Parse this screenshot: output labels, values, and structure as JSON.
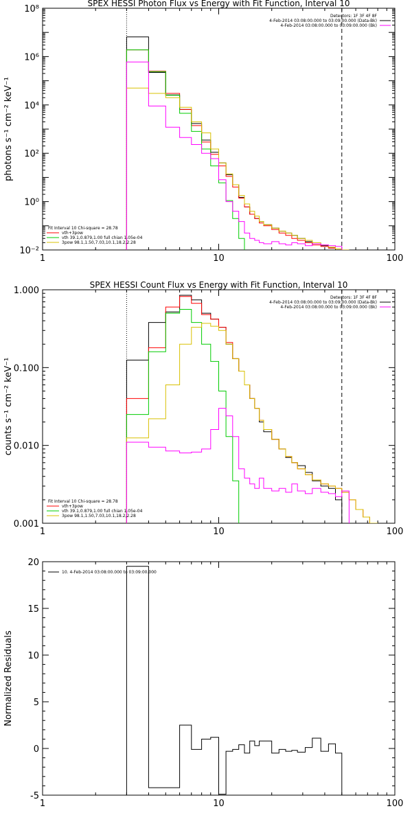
{
  "chart_data": [
    {
      "type": "line",
      "title": "SPEX HESSI Photon Flux vs Energy with Fit Function, Interval 10",
      "ylabel": "photons s⁻¹ cm⁻² keV⁻¹",
      "xlabel": "",
      "xscale": "log",
      "yscale": "log",
      "xlim": [
        1,
        100
      ],
      "ylim": [
        0.01,
        100000000
      ],
      "x_ticks": [
        1,
        10,
        100
      ],
      "x_tick_labels": [
        "1",
        "10",
        "100"
      ],
      "y_ticks": [
        0.01,
        1,
        100,
        10000,
        1000000,
        100000000
      ],
      "y_tick_labels": [
        "10⁻²",
        "10⁰",
        "10²",
        "10⁴",
        "10⁶",
        "10⁸"
      ],
      "vlines": [
        {
          "x": 3,
          "style": "dotted"
        },
        {
          "x": 50,
          "style": "dashed"
        }
      ],
      "legend_right": [
        {
          "text": "Detectors: 1F 3F 4F 8F",
          "color": "#000000"
        },
        {
          "text": "4-Feb-2014 03:08:00.000 to 03:09:00.000 (Data-Bk)",
          "color": "#000000"
        },
        {
          "text": "4-Feb-2014 03:08:00.000 to 03:09:00.000 (Bk)",
          "color": "#ff00ff"
        }
      ],
      "legend_left": [
        {
          "text": "Fit Interval 10   Chi-square = 28.78",
          "color": "#000000"
        },
        {
          "text": "vth+3pow",
          "color": "#ff0000"
        },
        {
          "text": "vth 39.1,0.879,1.00  full chian 1.05e-04",
          "color": "#00cc00"
        },
        {
          "text": "3pow 98.1,1.50,7.03,10.1,18.2,2.28",
          "color": "#d8c000"
        }
      ],
      "bin_edges": [
        3,
        4,
        5,
        6,
        7,
        8,
        9,
        10,
        11,
        12,
        13,
        14,
        15,
        16,
        17,
        18,
        20,
        22,
        24,
        26,
        28,
        31,
        34,
        38,
        42,
        46,
        50,
        55,
        60
      ],
      "series": [
        {
          "name": "Data-Bk",
          "color": "#000000",
          "values": [
            6500000,
            220000,
            26000,
            6500,
            1700,
            350,
            110,
            40,
            13,
            5,
            1.5,
            0.6,
            0.3,
            0.2,
            0.15,
            0.11,
            0.08,
            0.06,
            0.05,
            0.04,
            0.03,
            0.022,
            0.018,
            0.015,
            0.012,
            0.01,
            null,
            null
          ]
        },
        {
          "name": "vth+3pow",
          "color": "#ff0000",
          "values": [
            1900000,
            250000,
            30000,
            6500,
            1400,
            290,
            90,
            30,
            11,
            4,
            1.4,
            0.6,
            0.3,
            0.2,
            0.13,
            0.1,
            0.07,
            0.05,
            0.04,
            0.03,
            0.025,
            0.02,
            0.016,
            0.014,
            0.012,
            0.011,
            0.01,
            null
          ]
        },
        {
          "name": "vth",
          "color": "#00cc00",
          "values": [
            1900000,
            240000,
            25000,
            4500,
            800,
            150,
            30,
            6,
            1.1,
            0.2,
            0.03,
            null,
            null,
            null,
            null,
            null,
            null,
            null,
            null,
            null,
            null,
            null,
            null,
            null,
            null,
            null,
            null,
            null
          ]
        },
        {
          "name": "3pow",
          "color": "#d8c000",
          "values": [
            50000,
            30000,
            20000,
            8000,
            2000,
            700,
            150,
            40,
            14,
            5,
            1.8,
            0.8,
            0.4,
            0.25,
            0.15,
            0.11,
            0.08,
            0.06,
            0.05,
            0.04,
            0.03,
            0.025,
            0.02,
            0.016,
            0.013,
            0.011,
            0.01,
            null
          ]
        },
        {
          "name": "Bk",
          "color": "#ff00ff",
          "values": [
            600000,
            9000,
            1200,
            450,
            230,
            100,
            60,
            8,
            1,
            0.4,
            0.15,
            0.05,
            0.03,
            0.025,
            0.02,
            0.018,
            0.022,
            0.018,
            0.016,
            0.02,
            0.018,
            0.015,
            0.018,
            0.016,
            0.015,
            0.014,
            null,
            null
          ]
        }
      ]
    },
    {
      "type": "line",
      "title": "SPEX HESSI Count Flux vs Energy with Fit Function, Interval 10",
      "ylabel": "counts s⁻¹ cm⁻² keV⁻¹",
      "xlabel": "",
      "xscale": "log",
      "yscale": "log",
      "xlim": [
        1,
        100
      ],
      "ylim": [
        0.001,
        1
      ],
      "x_ticks": [
        1,
        10,
        100
      ],
      "x_tick_labels": [
        "1",
        "10",
        "100"
      ],
      "y_ticks": [
        0.001,
        0.01,
        0.1,
        1
      ],
      "y_tick_labels": [
        "0.001",
        "0.010",
        "0.100",
        "1.000"
      ],
      "vlines": [
        {
          "x": 3,
          "style": "dotted"
        },
        {
          "x": 50,
          "style": "dashed"
        }
      ],
      "legend_right": [
        {
          "text": "Detectors: 1F 3F 4F 8F",
          "color": "#000000"
        },
        {
          "text": "4-Feb-2014 03:08:00.000 to 03:09:00.000 (Data-Bk)",
          "color": "#000000"
        },
        {
          "text": "4-Feb-2014 03:08:00.000 to 03:09:00.000 (Bk)",
          "color": "#ff00ff"
        }
      ],
      "legend_left": [
        {
          "text": "Fit Interval 10   Chi-square = 28.78",
          "color": "#000000"
        },
        {
          "text": "vth+3pow",
          "color": "#ff0000"
        },
        {
          "text": "vth 39.1,0.879,1.00  full chian 1.05e-04",
          "color": "#00cc00"
        },
        {
          "text": "3pow 98.1,1.50,7.03,10.1,18.2,2.28",
          "color": "#d8c000"
        }
      ],
      "bin_edges": [
        3,
        4,
        5,
        6,
        7,
        8,
        9,
        10,
        11,
        12,
        13,
        14,
        15,
        16,
        17,
        18,
        20,
        22,
        24,
        26,
        28,
        31,
        34,
        38,
        42,
        46,
        50,
        55,
        60,
        66,
        72,
        80
      ],
      "series": [
        {
          "name": "Data-Bk",
          "color": "#000000",
          "values": [
            0.125,
            0.38,
            0.52,
            0.85,
            0.74,
            0.5,
            0.42,
            0.33,
            0.2,
            0.13,
            0.09,
            0.06,
            0.04,
            0.03,
            0.02,
            0.015,
            0.012,
            0.009,
            0.007,
            0.006,
            0.0055,
            0.0045,
            0.0035,
            0.003,
            0.0028,
            0.002,
            null,
            null,
            null,
            null,
            null
          ]
        },
        {
          "name": "vth+3pow",
          "color": "#ff0000",
          "values": [
            0.04,
            0.18,
            0.6,
            0.82,
            0.67,
            0.48,
            0.42,
            0.33,
            0.21,
            0.13,
            0.09,
            0.06,
            0.04,
            0.03,
            0.021,
            0.016,
            0.012,
            0.009,
            0.0072,
            0.006,
            0.005,
            0.0042,
            0.0036,
            0.0032,
            0.003,
            0.0028,
            0.0025,
            0.002,
            0.0015,
            0.0012,
            0.001
          ]
        },
        {
          "name": "vth",
          "color": "#00cc00",
          "values": [
            0.025,
            0.16,
            0.5,
            0.56,
            0.38,
            0.2,
            0.12,
            0.05,
            0.013,
            0.0035,
            0.0008,
            null,
            null,
            null,
            null,
            null,
            null,
            null,
            null,
            null,
            null,
            null,
            null,
            null,
            null,
            null,
            null,
            null,
            null,
            null,
            null
          ]
        },
        {
          "name": "3pow",
          "color": "#d8c000",
          "values": [
            0.0125,
            0.022,
            0.06,
            0.2,
            0.33,
            0.37,
            0.34,
            0.3,
            0.2,
            0.13,
            0.09,
            0.06,
            0.04,
            0.03,
            0.021,
            0.016,
            0.012,
            0.009,
            0.0072,
            0.006,
            0.005,
            0.0042,
            0.0036,
            0.0032,
            0.003,
            0.0028,
            0.0025,
            0.002,
            0.0015,
            0.0012,
            0.001
          ]
        },
        {
          "name": "Bk",
          "color": "#ff00ff",
          "values": [
            0.011,
            0.0095,
            0.0085,
            0.008,
            0.0082,
            0.009,
            0.016,
            0.03,
            0.024,
            0.013,
            0.005,
            0.0038,
            0.0032,
            0.0028,
            0.0038,
            0.0028,
            0.0026,
            0.0028,
            0.0025,
            0.0032,
            0.0026,
            0.0024,
            0.0028,
            0.0025,
            0.0024,
            0.0022,
            0.0026,
            null,
            null,
            null,
            null
          ]
        }
      ]
    },
    {
      "type": "line",
      "title": "",
      "ylabel": "Normalized Residuals",
      "xlabel": "",
      "xscale": "log",
      "yscale": "linear",
      "xlim": [
        1,
        100
      ],
      "ylim": [
        -5,
        20
      ],
      "x_ticks": [
        1,
        10,
        100
      ],
      "x_tick_labels": [
        "1",
        "10",
        "100"
      ],
      "y_ticks": [
        -5,
        0,
        5,
        10,
        15,
        20
      ],
      "y_tick_labels": [
        "-5",
        "0",
        "5",
        "10",
        "15",
        "20"
      ],
      "legend": "10.  4-Feb-2014 03:08:00.000 to 03:09:00.000",
      "bin_edges": [
        3,
        4,
        5,
        6,
        7,
        8,
        9,
        10,
        11,
        12,
        13,
        14,
        15,
        16,
        17,
        18,
        20,
        22,
        24,
        26,
        28,
        31,
        34,
        38,
        42,
        46,
        50
      ],
      "series": [
        {
          "color": "#000000",
          "values": [
            19.5,
            -4.2,
            -4.2,
            2.5,
            -0.1,
            1.0,
            1.2,
            -4.9,
            -0.3,
            -0.1,
            0.4,
            -0.5,
            0.8,
            0.3,
            0.8,
            0.8,
            -0.5,
            -0.1,
            -0.3,
            -0.2,
            -0.4,
            0.1,
            1.1,
            -0.3,
            0.5,
            -0.5
          ]
        }
      ]
    }
  ]
}
